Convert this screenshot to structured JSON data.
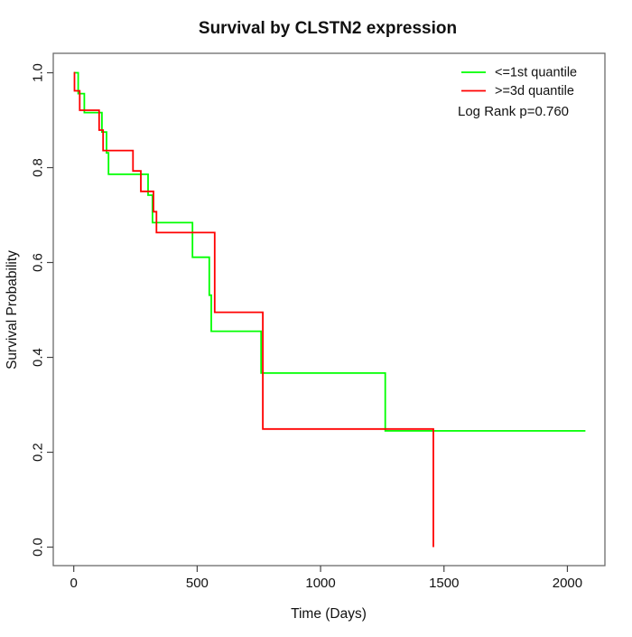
{
  "chart_data": {
    "type": "line",
    "step": true,
    "title": "Survival by CLSTN2 expression",
    "xlabel": "Time (Days)",
    "ylabel": "Survival Probability",
    "xlim": [
      -83,
      2152
    ],
    "ylim": [
      -0.039,
      1.041
    ],
    "grid": false,
    "legend_position": "top-right",
    "x_ticks": {
      "values": [
        0,
        500,
        1000,
        1500,
        2000
      ],
      "labels": [
        "0",
        "500",
        "1000",
        "1500",
        "2000"
      ]
    },
    "y_ticks": {
      "values": [
        0.0,
        0.2,
        0.4,
        0.6,
        0.8,
        1.0
      ],
      "labels": [
        "0.0",
        "0.2",
        "0.4",
        "0.6",
        "0.8",
        "1.0"
      ]
    },
    "series": [
      {
        "name": "<=1st quantile",
        "color": "#00ff00",
        "points": [
          [
            0,
            1.0
          ],
          [
            18,
            0.956
          ],
          [
            43,
            0.916
          ],
          [
            114,
            0.875
          ],
          [
            133,
            0.831
          ],
          [
            141,
            0.786
          ],
          [
            301,
            0.742
          ],
          [
            319,
            0.684
          ],
          [
            481,
            0.611
          ],
          [
            549,
            0.531
          ],
          [
            557,
            0.455
          ],
          [
            759,
            0.367
          ],
          [
            1262,
            0.245
          ],
          [
            2073,
            0.245
          ]
        ]
      },
      {
        "name": ">=3d quantile",
        "color": "#ff0000",
        "points": [
          [
            0,
            1.0
          ],
          [
            3,
            0.962
          ],
          [
            24,
            0.921
          ],
          [
            103,
            0.879
          ],
          [
            119,
            0.836
          ],
          [
            240,
            0.793
          ],
          [
            272,
            0.75
          ],
          [
            323,
            0.707
          ],
          [
            335,
            0.663
          ],
          [
            571,
            0.495
          ],
          [
            766,
            0.249
          ],
          [
            1457,
            0.0
          ]
        ]
      }
    ],
    "annotation": "Log Rank p=0.760"
  },
  "legend": {
    "items": [
      {
        "label": "<=1st quantile",
        "color": "#00ff00"
      },
      {
        "label": ">=3d quantile",
        "color": "#ff0000"
      }
    ],
    "annotation": "Log Rank p=0.760"
  }
}
